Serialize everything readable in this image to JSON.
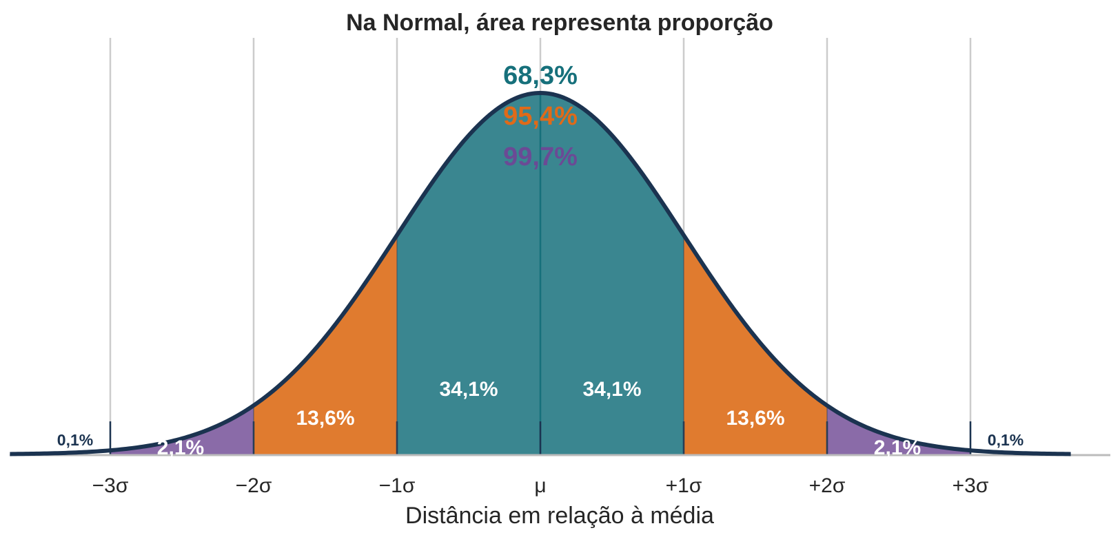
{
  "chart_data": {
    "type": "area",
    "title": "Na Normal, área representa proporção",
    "xlabel": "Distância em relação à média",
    "ylabel": "",
    "xlim": [
      -3.7,
      3.7
    ],
    "ylim": [
      0,
      0.42
    ],
    "grid": "vertical",
    "ticks": [
      {
        "x": -3,
        "label": "−3σ"
      },
      {
        "x": -2,
        "label": "−2σ"
      },
      {
        "x": -1,
        "label": "−1σ"
      },
      {
        "x": 0,
        "label": "μ"
      },
      {
        "x": 1,
        "label": "+1σ"
      },
      {
        "x": 2,
        "label": "+2σ"
      },
      {
        "x": 3,
        "label": "+3σ"
      }
    ],
    "colors": {
      "curve": "#1b3350",
      "inner": "#3a8690",
      "middle": "#e07b2f",
      "outer": "#8a6ba8",
      "tail_label": "#1b3350",
      "grid": "#cccccc",
      "axis": "#bbbbbb"
    },
    "regions": [
      {
        "from": -3,
        "to": -2,
        "band": "outer",
        "label": "2,1%",
        "label_color": "#ffffff"
      },
      {
        "from": -2,
        "to": -1,
        "band": "middle",
        "label": "13,6%",
        "label_color": "#ffffff"
      },
      {
        "from": -1,
        "to": 0,
        "band": "inner",
        "label": "34,1%",
        "label_color": "#ffffff"
      },
      {
        "from": 0,
        "to": 1,
        "band": "inner",
        "label": "34,1%",
        "label_color": "#ffffff"
      },
      {
        "from": 1,
        "to": 2,
        "band": "middle",
        "label": "13,6%",
        "label_color": "#ffffff"
      },
      {
        "from": 2,
        "to": 3,
        "band": "outer",
        "label": "2,1%",
        "label_color": "#ffffff"
      }
    ],
    "tails": [
      {
        "side": "left",
        "label": "0,1%"
      },
      {
        "side": "right",
        "label": "0,1%"
      }
    ],
    "cumulative": [
      {
        "label": "68,3%",
        "color": "#16707b"
      },
      {
        "label": "95,4%",
        "color": "#e06a18"
      },
      {
        "label": "99,7%",
        "color": "#6b4a95"
      }
    ]
  }
}
